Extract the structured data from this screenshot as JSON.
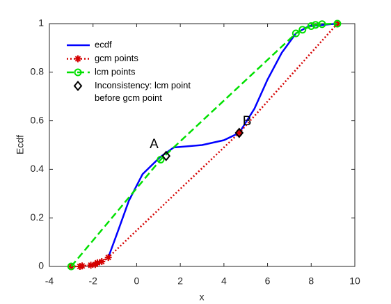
{
  "chart_data": {
    "type": "line",
    "xlabel": "x",
    "ylabel": "Ecdf",
    "xlim": [
      -4,
      10
    ],
    "xticks": [
      -4,
      -2,
      0,
      2,
      4,
      6,
      8,
      10
    ],
    "ylim": [
      0,
      1
    ],
    "yticks": [
      0,
      0.2,
      0.4,
      0.6,
      0.8,
      1
    ],
    "grid": false,
    "legend": "northwest",
    "series": [
      {
        "name": "ecdf",
        "color": "#0000ff",
        "line": "solid",
        "marker": "none",
        "x": [
          -1.3,
          -0.84,
          -0.36,
          0.27,
          1.07,
          1.7,
          3.0,
          4.0,
          4.7,
          5.4,
          6.0,
          6.65,
          7.3,
          7.9,
          9.2
        ],
        "values": [
          0.037,
          0.15,
          0.27,
          0.38,
          0.45,
          0.49,
          0.5,
          0.52,
          0.55,
          0.65,
          0.77,
          0.88,
          0.96,
          0.99,
          1
        ]
      },
      {
        "name": "gcm points",
        "color": "#d40000",
        "line": "dotted",
        "marker": "asterisk",
        "x": [
          -3,
          -2.6,
          -2.5,
          -2.1,
          -1.9,
          -1.8,
          -1.6,
          -1.3,
          4.7,
          9.2
        ],
        "values": [
          0,
          0,
          0.002,
          0.005,
          0.008,
          0.015,
          0.02,
          0.037,
          0.55,
          1
        ]
      },
      {
        "name": "lcm points",
        "color": "#00e000",
        "line": "dashed",
        "marker": "circle",
        "x": [
          -3,
          1.1,
          7.3,
          7.6,
          8.0,
          8.2,
          8.5,
          9.2
        ],
        "values": [
          0,
          0.44,
          0.96,
          0.975,
          0.99,
          0.995,
          0.998,
          1
        ]
      },
      {
        "name": [
          "Inconsistency: lcm point",
          "before gcm point"
        ],
        "color": "#000000",
        "line": "none",
        "marker": "diamond",
        "x": [
          1.35,
          4.7
        ],
        "values": [
          0.455,
          0.55
        ]
      }
    ],
    "annotations": [
      "A",
      "B"
    ]
  }
}
